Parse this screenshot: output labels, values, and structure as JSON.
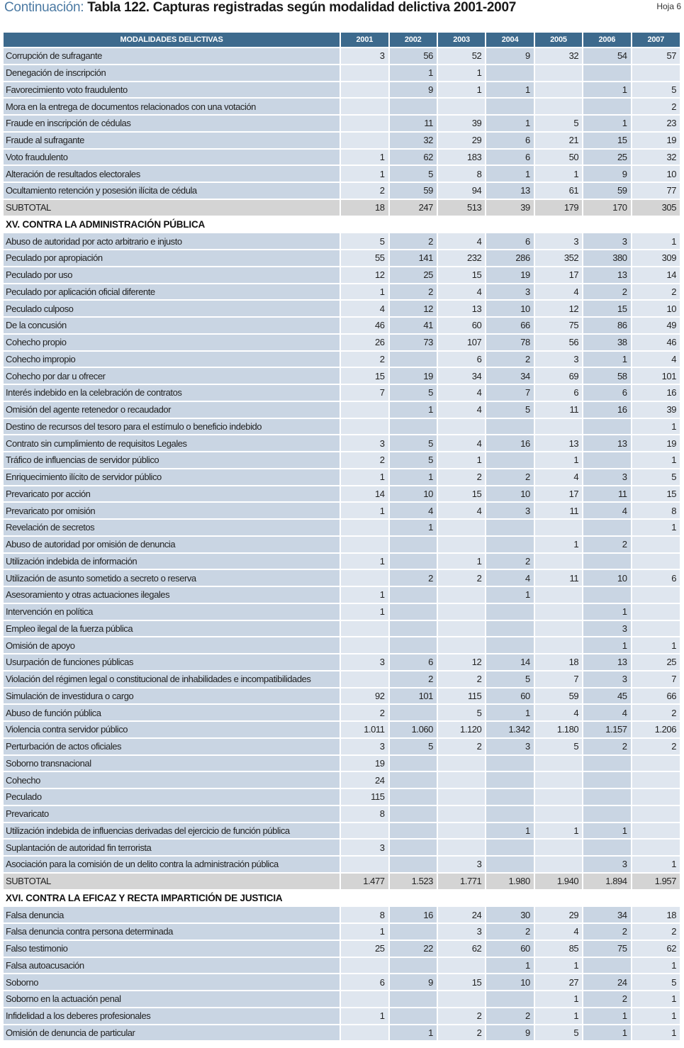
{
  "header": {
    "title_prefix": "Continuación:",
    "title": "Tabla 122.  Capturas registradas según modalidad delictiva 2001-2007",
    "sheet": "Hoja 6"
  },
  "colors": {
    "header_bg": "#3d6a8d",
    "title_prefix": "#4c7aa3",
    "cell_dark": "#c9d5e3",
    "cell_light": "#dfe6ef",
    "subtotal": "#d4d4d4"
  },
  "table": {
    "columns": [
      "MODALIDADES DELICTIVAS",
      "2001",
      "2002",
      "2003",
      "2004",
      "2005",
      "2006",
      "2007"
    ],
    "rows": [
      {
        "label": "Corrupción  de sufragante",
        "values": [
          "3",
          "56",
          "52",
          "9",
          "32",
          "54",
          "57"
        ]
      },
      {
        "label": "Denegación de inscripción",
        "values": [
          "",
          "1",
          "1",
          "",
          "",
          "",
          ""
        ]
      },
      {
        "label": "Favorecimiento voto fraudulento",
        "values": [
          "",
          "9",
          "1",
          "1",
          "",
          "1",
          "5"
        ]
      },
      {
        "label": "Mora en la entrega de documentos relacionados con una votación",
        "values": [
          "",
          "",
          "",
          "",
          "",
          "",
          "2"
        ]
      },
      {
        "label": "Fraude en inscripción de cédulas",
        "values": [
          "",
          "11",
          "39",
          "1",
          "5",
          "1",
          "23"
        ]
      },
      {
        "label": "Fraude al sufragante",
        "values": [
          "",
          "32",
          "29",
          "6",
          "21",
          "15",
          "19"
        ]
      },
      {
        "label": "Voto fraudulento",
        "values": [
          "1",
          "62",
          "183",
          "6",
          "50",
          "25",
          "32"
        ]
      },
      {
        "label": "Alteración de resultados electorales",
        "values": [
          "1",
          "5",
          "8",
          "1",
          "1",
          "9",
          "10"
        ]
      },
      {
        "label": "Ocultamiento retención y posesión ilícita de cédula",
        "values": [
          "2",
          "59",
          "94",
          "13",
          "61",
          "59",
          "77"
        ]
      },
      {
        "type": "subtotal",
        "label": "SUBTOTAL",
        "values": [
          "18",
          "247",
          "513",
          "39",
          "179",
          "170",
          "305"
        ]
      },
      {
        "type": "section",
        "label": "XV. CONTRA LA ADMINISTRACIÓN PÚBLICA"
      },
      {
        "label": "Abuso de autoridad por acto arbitrario e injusto",
        "values": [
          "5",
          "2",
          "4",
          "6",
          "3",
          "3",
          "1"
        ]
      },
      {
        "label": "Peculado por apropiación",
        "values": [
          "55",
          "141",
          "232",
          "286",
          "352",
          "380",
          "309"
        ]
      },
      {
        "label": "Peculado por uso",
        "values": [
          "12",
          "25",
          "15",
          "19",
          "17",
          "13",
          "14"
        ]
      },
      {
        "label": "Peculado por aplicación oficial diferente",
        "values": [
          "1",
          "2",
          "4",
          "3",
          "4",
          "2",
          "2"
        ]
      },
      {
        "label": "Peculado culposo",
        "values": [
          "4",
          "12",
          "13",
          "10",
          "12",
          "15",
          "10"
        ]
      },
      {
        "label": "De la concusión",
        "values": [
          "46",
          "41",
          "60",
          "66",
          "75",
          "86",
          "49"
        ]
      },
      {
        "label": "Cohecho propio",
        "values": [
          "26",
          "73",
          "107",
          "78",
          "56",
          "38",
          "46"
        ]
      },
      {
        "label": "Cohecho impropio",
        "values": [
          "2",
          "",
          "6",
          "2",
          "3",
          "1",
          "4"
        ]
      },
      {
        "label": "Cohecho por dar u ofrecer",
        "values": [
          "15",
          "19",
          "34",
          "34",
          "69",
          "58",
          "101"
        ]
      },
      {
        "label": "Interés indebido en la celebración  de contratos",
        "values": [
          "7",
          "5",
          "4",
          "7",
          "6",
          "6",
          "16"
        ]
      },
      {
        "label": "Omisión del agente retenedor o recaudador",
        "values": [
          "",
          "1",
          "4",
          "5",
          "11",
          "16",
          "39"
        ]
      },
      {
        "label": "Destino de recursos del tesoro para el estímulo o beneficio indebido",
        "values": [
          "",
          "",
          "",
          "",
          "",
          "",
          "1"
        ]
      },
      {
        "label": "Contrato sin cumplimiento de requisitos Legales",
        "values": [
          "3",
          "5",
          "4",
          "16",
          "13",
          "13",
          "19"
        ]
      },
      {
        "label": "Tráfico de influencias de servidor público",
        "values": [
          "2",
          "5",
          "1",
          "",
          "1",
          "",
          "1"
        ]
      },
      {
        "label": "Enriquecimiento ilícito de servidor público",
        "values": [
          "1",
          "1",
          "2",
          "2",
          "4",
          "3",
          "5"
        ]
      },
      {
        "label": "Prevaricato por acción",
        "values": [
          "14",
          "10",
          "15",
          "10",
          "17",
          "11",
          "15"
        ]
      },
      {
        "label": "Prevaricato por omisión",
        "values": [
          "1",
          "4",
          "4",
          "3",
          "11",
          "4",
          "8"
        ]
      },
      {
        "label": "Revelación de secretos",
        "values": [
          "",
          "1",
          "",
          "",
          "",
          "",
          "1"
        ]
      },
      {
        "label": "Abuso de autoridad por omisión de denuncia",
        "values": [
          "",
          "",
          "",
          "",
          "1",
          "2",
          ""
        ]
      },
      {
        "label": "Utilización indebida de información",
        "values": [
          "1",
          "",
          "1",
          "2",
          "",
          "",
          ""
        ]
      },
      {
        "label": "Utilización de asunto sometido a secreto o reserva",
        "values": [
          "",
          "2",
          "2",
          "4",
          "11",
          "10",
          "6"
        ]
      },
      {
        "label": "Asesoramiento y otras actuaciones ilegales",
        "values": [
          "1",
          "",
          "",
          "1",
          "",
          "",
          ""
        ]
      },
      {
        "label": "Intervención en política",
        "values": [
          "1",
          "",
          "",
          "",
          "",
          "1",
          ""
        ]
      },
      {
        "label": "Empleo ilegal de la fuerza pública",
        "values": [
          "",
          "",
          "",
          "",
          "",
          "3",
          ""
        ]
      },
      {
        "label": "Omisión de apoyo",
        "values": [
          "",
          "",
          "",
          "",
          "",
          "1",
          "1"
        ]
      },
      {
        "label": "Usurpación de funciones públicas",
        "values": [
          "3",
          "6",
          "12",
          "14",
          "18",
          "13",
          "25"
        ]
      },
      {
        "label": "Violación del régimen legal o constitucional de inhabilidades e incompatibilidades",
        "values": [
          "",
          "2",
          "2",
          "5",
          "7",
          "3",
          "7"
        ]
      },
      {
        "label": "Simulación de investidura o cargo",
        "values": [
          "92",
          "101",
          "115",
          "60",
          "59",
          "45",
          "66"
        ]
      },
      {
        "label": "Abuso de función pública",
        "values": [
          "2",
          "",
          "5",
          "1",
          "4",
          "4",
          "2"
        ]
      },
      {
        "label": "Violencia contra servidor público",
        "values": [
          "1.011",
          "1.060",
          "1.120",
          "1.342",
          "1.180",
          "1.157",
          "1.206"
        ]
      },
      {
        "label": "Perturbación de actos oficiales",
        "values": [
          "3",
          "5",
          "2",
          "3",
          "5",
          "2",
          "2"
        ]
      },
      {
        "label": "Soborno transnacional",
        "values": [
          "19",
          "",
          "",
          "",
          "",
          "",
          ""
        ]
      },
      {
        "label": "Cohecho",
        "values": [
          "24",
          "",
          "",
          "",
          "",
          "",
          ""
        ]
      },
      {
        "label": "Peculado",
        "values": [
          "115",
          "",
          "",
          "",
          "",
          "",
          ""
        ]
      },
      {
        "label": "Prevaricato",
        "values": [
          "8",
          "",
          "",
          "",
          "",
          "",
          ""
        ]
      },
      {
        "label": "Utilización indebida de influencias derivadas del ejercicio de función pública",
        "values": [
          "",
          "",
          "",
          "1",
          "1",
          "1",
          ""
        ]
      },
      {
        "label": "Suplantación de autoridad fin terrorista",
        "values": [
          "3",
          "",
          "",
          "",
          "",
          "",
          ""
        ]
      },
      {
        "label": "Asociación para la comisión de un delito contra la administración pública",
        "values": [
          "",
          "",
          "3",
          "",
          "",
          "3",
          "1"
        ]
      },
      {
        "type": "subtotal",
        "label": "SUBTOTAL",
        "values": [
          "1.477",
          "1.523",
          "1.771",
          "1.980",
          "1.940",
          "1.894",
          "1.957"
        ]
      },
      {
        "type": "section",
        "label": "XVI. CONTRA LA EFICAZ Y RECTA IMPARTICIÓN DE JUSTICIA"
      },
      {
        "label": "Falsa denuncia",
        "values": [
          "8",
          "16",
          "24",
          "30",
          "29",
          "34",
          "18"
        ]
      },
      {
        "label": "Falsa  denuncia contra persona determinada",
        "values": [
          "1",
          "",
          "3",
          "2",
          "4",
          "2",
          "2"
        ]
      },
      {
        "label": "Falso testimonio",
        "values": [
          "25",
          "22",
          "62",
          "60",
          "85",
          "75",
          "62"
        ]
      },
      {
        "label": "Falsa autoacusación",
        "values": [
          "",
          "",
          "",
          "1",
          "1",
          "",
          "1"
        ]
      },
      {
        "label": "Soborno",
        "values": [
          "6",
          "9",
          "15",
          "10",
          "27",
          "24",
          "5"
        ]
      },
      {
        "label": "Soborno en la actuación penal",
        "values": [
          "",
          "",
          "",
          "",
          "1",
          "2",
          "1"
        ]
      },
      {
        "label": "Infidelidad a los deberes profesionales",
        "values": [
          "1",
          "",
          "2",
          "2",
          "1",
          "1",
          "1"
        ]
      },
      {
        "label": "Omisión de denuncia de particular",
        "values": [
          "",
          "1",
          "2",
          "9",
          "5",
          "1",
          "1"
        ]
      }
    ]
  }
}
